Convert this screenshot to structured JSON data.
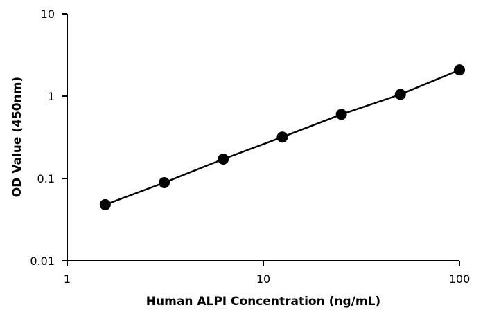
{
  "chart_data": {
    "type": "scatter",
    "title": "",
    "xlabel": "Human ALPI Concentration (ng/mL)",
    "ylabel": "OD Value (450nm)",
    "x_scale": "log",
    "y_scale": "log",
    "xlim": [
      1,
      100
    ],
    "ylim": [
      0.01,
      10
    ],
    "x_ticks": [
      "1",
      "10",
      "100"
    ],
    "y_ticks": [
      "0.01",
      "0.1",
      "1",
      "10"
    ],
    "grid": false,
    "legend": "none",
    "series": [
      {
        "x": [
          1.5625,
          3.125,
          6.25,
          12.5,
          25,
          50,
          100
        ],
        "y": [
          0.048,
          0.089,
          0.172,
          0.318,
          0.6,
          1.05,
          2.08
        ]
      }
    ],
    "colors": {
      "marker": "#000000",
      "line": "#000000",
      "axis": "#000000"
    }
  }
}
